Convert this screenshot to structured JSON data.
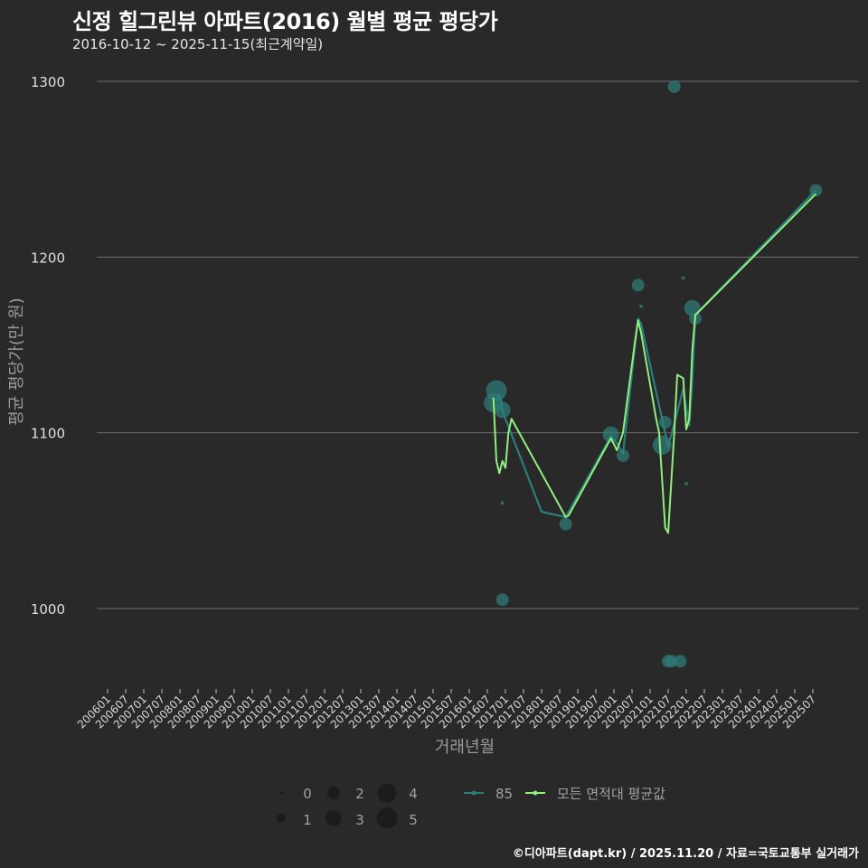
{
  "header": {
    "title": "신정 힐그린뷰 아파트(2016) 월별 평균 평당가",
    "subtitle": "2016-10-12 ~ 2025-11-15(최근계약일)"
  },
  "footer": {
    "credit": "©디아파트(dapt.kr) / 2025.11.20 / 자료=국토교통부 실거래가"
  },
  "colors": {
    "background": "#292929",
    "gridline": "#6e6e6e",
    "series_85": "#2a7f7a",
    "series_all": "#90ee7e",
    "bubble": "#2f7a76"
  },
  "chart_data": {
    "type": "line",
    "title": "신정 힐그린뷰 아파트(2016) 월별 평균 평당가",
    "subtitle": "2016-10-12 ~ 2025-11-15(최근계약일)",
    "xlabel": "거래년월",
    "ylabel": "평균 평당가(만 원)",
    "ylim": [
      950,
      1310
    ],
    "yticks": [
      1000,
      1100,
      1200,
      1300
    ],
    "grid": true,
    "xticks": [
      "200601",
      "200607",
      "200701",
      "200707",
      "200801",
      "200807",
      "200901",
      "200907",
      "201001",
      "201007",
      "201101",
      "201107",
      "201201",
      "201207",
      "201301",
      "201307",
      "201401",
      "201407",
      "201501",
      "201507",
      "201601",
      "201607",
      "201701",
      "201707",
      "201801",
      "201807",
      "201901",
      "201907",
      "202001",
      "202007",
      "202101",
      "202107",
      "202201",
      "202207",
      "202301",
      "202307",
      "202401",
      "202407",
      "202501",
      "202507"
    ],
    "legend": {
      "size_title": "",
      "size_entries": [
        "0",
        "1",
        "2",
        "3",
        "4",
        "5"
      ],
      "series_entries": [
        "85",
        "모든 면적대 평균값"
      ],
      "position": "bottom"
    },
    "series": [
      {
        "name": "85",
        "color": "#2a7f7a",
        "points": [
          [
            "201610",
            1117
          ],
          [
            "201611",
            1122
          ],
          [
            "201612",
            1113
          ],
          [
            "201701",
            1108
          ],
          [
            "201801",
            1055
          ],
          [
            "201809",
            1052
          ],
          [
            "201912",
            1098
          ],
          [
            "202002",
            1094
          ],
          [
            "202004",
            1088
          ],
          [
            "202009",
            1165
          ],
          [
            "202010",
            1162
          ],
          [
            "202106",
            1100
          ],
          [
            "202107",
            1092
          ],
          [
            "202112",
            1125
          ],
          [
            "202202",
            1104
          ],
          [
            "202203",
            1130
          ],
          [
            "202204",
            1167
          ],
          [
            "202508",
            1238
          ]
        ]
      },
      {
        "name": "모든 면적대 평균값",
        "color": "#90ee7e",
        "points": [
          [
            "201609",
            1120
          ],
          [
            "201610",
            1084
          ],
          [
            "201611",
            1077
          ],
          [
            "201612",
            1084
          ],
          [
            "201701",
            1080
          ],
          [
            "201702",
            1100
          ],
          [
            "201703",
            1108
          ],
          [
            "201809",
            1052
          ],
          [
            "201810",
            1053
          ],
          [
            "201912",
            1097
          ],
          [
            "202002",
            1090
          ],
          [
            "202004",
            1100
          ],
          [
            "202008",
            1152
          ],
          [
            "202009",
            1164
          ],
          [
            "202010",
            1157
          ],
          [
            "202103",
            1108
          ],
          [
            "202104",
            1100
          ],
          [
            "202106",
            1046
          ],
          [
            "202107",
            1043
          ],
          [
            "202109",
            1100
          ],
          [
            "202110",
            1133
          ],
          [
            "202112",
            1131
          ],
          [
            "202201",
            1102
          ],
          [
            "202202",
            1108
          ],
          [
            "202203",
            1147
          ],
          [
            "202204",
            1167
          ],
          [
            "202508",
            1236
          ]
        ]
      }
    ],
    "bubbles": [
      {
        "x": "201609",
        "y": 1117,
        "size": 4
      },
      {
        "x": "201610",
        "y": 1124,
        "size": 5
      },
      {
        "x": "201612",
        "y": 1113,
        "size": 3
      },
      {
        "x": "201612",
        "y": 1060,
        "size": 0
      },
      {
        "x": "201612",
        "y": 1005,
        "size": 2
      },
      {
        "x": "201809",
        "y": 1048,
        "size": 2
      },
      {
        "x": "201912",
        "y": 1099,
        "size": 3
      },
      {
        "x": "202004",
        "y": 1087,
        "size": 2
      },
      {
        "x": "202009",
        "y": 1184,
        "size": 2
      },
      {
        "x": "202010",
        "y": 1172,
        "size": 0
      },
      {
        "x": "202105",
        "y": 1093,
        "size": 4
      },
      {
        "x": "202106",
        "y": 1106,
        "size": 2
      },
      {
        "x": "202107",
        "y": 970,
        "size": 2
      },
      {
        "x": "202108",
        "y": 970,
        "size": 2
      },
      {
        "x": "202109",
        "y": 1297,
        "size": 2
      },
      {
        "x": "202111",
        "y": 970,
        "size": 2
      },
      {
        "x": "202112",
        "y": 1188,
        "size": 0
      },
      {
        "x": "202201",
        "y": 1071,
        "size": 0
      },
      {
        "x": "202203",
        "y": 1171,
        "size": 3
      },
      {
        "x": "202204",
        "y": 1165,
        "size": 2
      },
      {
        "x": "202508",
        "y": 1238,
        "size": 2
      }
    ]
  }
}
